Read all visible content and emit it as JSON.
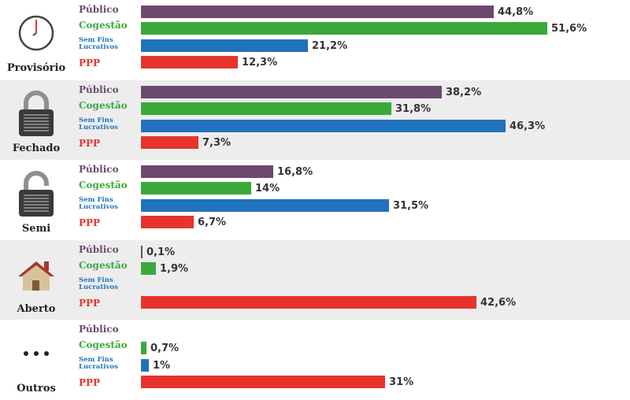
{
  "chart_data": {
    "type": "bar",
    "orientation": "horizontal",
    "colors": {
      "Público": "#6b4a6e",
      "Cogestão": "#3aa93a",
      "Sem Fins Lucrativos": "#2272bd",
      "PPP": "#e6342c"
    },
    "groups": [
      {
        "name": "Provisório",
        "icon": "clock-icon",
        "bars": [
          {
            "series": "Público",
            "value": 44.8,
            "label": "44,8%"
          },
          {
            "series": "Cogestão",
            "value": 51.6,
            "label": "51,6%"
          },
          {
            "series": "Sem Fins Lucrativos",
            "value": 21.2,
            "label": "21,2%"
          },
          {
            "series": "PPP",
            "value": 12.3,
            "label": "12,3%"
          }
        ]
      },
      {
        "name": "Fechado",
        "icon": "closed-padlock-icon",
        "bars": [
          {
            "series": "Público",
            "value": 38.2,
            "label": "38,2%"
          },
          {
            "series": "Cogestão",
            "value": 31.8,
            "label": "31,8%"
          },
          {
            "series": "Sem Fins Lucrativos",
            "value": 46.3,
            "label": "46,3%"
          },
          {
            "series": "PPP",
            "value": 7.3,
            "label": "7,3%"
          }
        ]
      },
      {
        "name": "Semi",
        "icon": "open-padlock-icon",
        "bars": [
          {
            "series": "Público",
            "value": 16.8,
            "label": "16,8%"
          },
          {
            "series": "Cogestão",
            "value": 14,
            "label": "14%"
          },
          {
            "series": "Sem Fins Lucrativos",
            "value": 31.5,
            "label": "31,5%"
          },
          {
            "series": "PPP",
            "value": 6.7,
            "label": "6,7%"
          }
        ]
      },
      {
        "name": "Aberto",
        "icon": "house-icon",
        "bars": [
          {
            "series": "Público",
            "value": 0.1,
            "label": "0,1%"
          },
          {
            "series": "Cogestão",
            "value": 1.9,
            "label": "1,9%"
          },
          {
            "series": "Sem Fins Lucrativos",
            "value": null,
            "label": ""
          },
          {
            "series": "PPP",
            "value": 42.6,
            "label": "42,6%"
          }
        ]
      },
      {
        "name": "Outros",
        "icon": "ellipsis-icon",
        "bars": [
          {
            "series": "Público",
            "value": null,
            "label": ""
          },
          {
            "series": "Cogestão",
            "value": 0.7,
            "label": "0,7%"
          },
          {
            "series": "Sem Fins Lucrativos",
            "value": 1,
            "label": "1%"
          },
          {
            "series": "PPP",
            "value": 31,
            "label": "31%"
          }
        ]
      }
    ]
  }
}
